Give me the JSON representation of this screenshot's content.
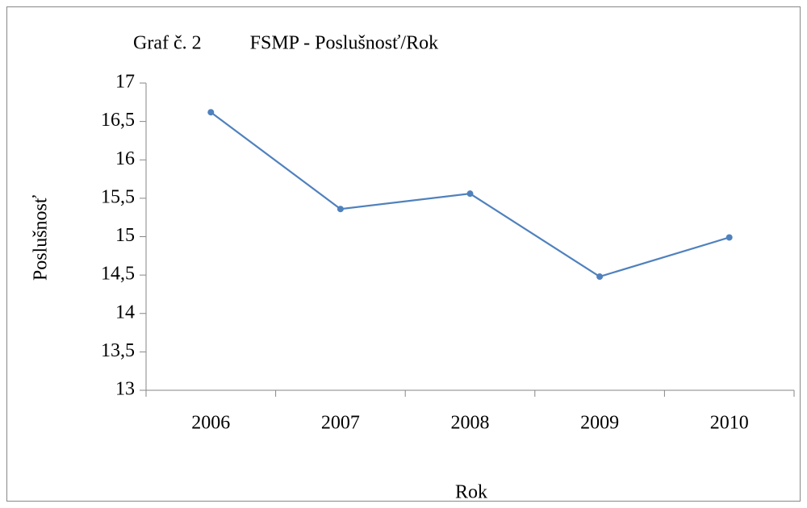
{
  "chart_data": {
    "type": "line",
    "title": "Graf č. 2          FSMP - Poslušnosť/Rok",
    "x_label": "Rok",
    "y_label": "Poslušnosť",
    "categories": [
      "2006",
      "2007",
      "2008",
      "2009",
      "2010"
    ],
    "series": [
      {
        "name": "Poslušnosť",
        "color": "#4f81bd",
        "values": [
          16.62,
          15.36,
          15.56,
          14.48,
          14.99
        ]
      }
    ],
    "ylim": [
      13,
      17
    ],
    "yticks": [
      13,
      {
        "value": 13.5,
        "label": "13,5"
      },
      14,
      {
        "value": 14.5,
        "label": "14,5"
      },
      15,
      {
        "value": 15.5,
        "label": "15,5"
      },
      16,
      {
        "value": 16.5,
        "label": "16,5"
      },
      17
    ],
    "grid": false,
    "legend": false
  }
}
